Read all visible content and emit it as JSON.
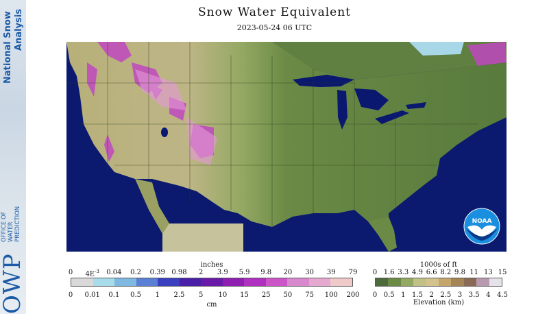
{
  "sidebar": {
    "line1": "National Snow",
    "line2": "Analysis",
    "owp_big": "OWP",
    "owp_small_1": "OFFICE OF",
    "owp_small_2": "WATER",
    "owp_small_3": "PREDICTION"
  },
  "title": "Snow Water Equivalent",
  "subtitle": "2023-05-24 06 UTC",
  "noaa_logo": "NOAA",
  "legend_swe": {
    "top_label": "inches",
    "bottom_label": "cm",
    "top_ticks": [
      "0",
      "4E-3",
      "0.04",
      "0.2",
      "0.39",
      "0.98",
      "2",
      "3.9",
      "5.9",
      "9.8",
      "20",
      "30",
      "39",
      "79"
    ],
    "bottom_ticks": [
      "0",
      "0.01",
      "0.1",
      "0.5",
      "1",
      "2.5",
      "5",
      "10",
      "15",
      "25",
      "50",
      "75",
      "100",
      "200"
    ],
    "colors": [
      "#d9d9d9",
      "#a9dcea",
      "#7fb8e0",
      "#5a7fd4",
      "#3a3fbf",
      "#4a1fa8",
      "#6a1aa8",
      "#8e1fb0",
      "#b030c0",
      "#cc55c8",
      "#d888cc",
      "#e5a9cf",
      "#f0c9c9"
    ]
  },
  "legend_elev": {
    "top_label": "1000s of ft",
    "bottom_label": "Elevation (km)",
    "top_ticks": [
      "0",
      "1.6",
      "3.3",
      "4.9",
      "6.6",
      "8.2",
      "9.8",
      "11",
      "13",
      "15"
    ],
    "bottom_ticks": [
      "0",
      "0.5",
      "1",
      "1.5",
      "2",
      "2.5",
      "3",
      "3.5",
      "4",
      "4.5"
    ],
    "colors": [
      "#4d6b3a",
      "#6a8a45",
      "#93a860",
      "#c0c087",
      "#d4c28d",
      "#c4a66d",
      "#a58457",
      "#8a6a55",
      "#b89ab0",
      "#e6e2ea"
    ]
  },
  "map_colors": {
    "ocean": "#0b1a6e",
    "low_land": "#5a7a3e",
    "mid_land": "#9aae6a",
    "high_land": "#c9c28d",
    "snow_heavy": "#c048c0",
    "snow_light": "#e59ad8",
    "lakes": "#0a1870",
    "outside": "#bfbf9a"
  }
}
